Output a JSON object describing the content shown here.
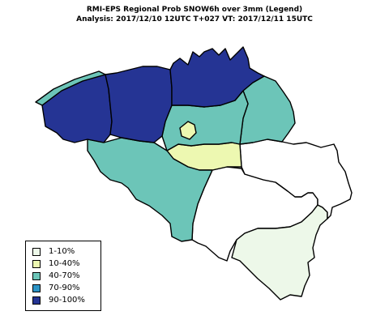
{
  "title": {
    "line1": "RMI-EPS Regional Prob SNOW6h over 3mm (Legend)",
    "line2": "Analysis:  2017/12/10 12UTC  T+027  VT:  2017/12/11  15UTC"
  },
  "legend": {
    "items": [
      {
        "label": "1-10%",
        "color": "#edf8e9"
      },
      {
        "label": "10-40%",
        "color": "#edf8b1"
      },
      {
        "label": "40-70%",
        "color": "#6cc5b8"
      },
      {
        "label": "70-90%",
        "color": "#2c94c6"
      },
      {
        "label": "90-100%",
        "color": "#253494"
      }
    ]
  },
  "regions": [
    {
      "name": "West Flanders",
      "category": "90-100%"
    },
    {
      "name": "East Flanders",
      "category": "90-100%"
    },
    {
      "name": "Antwerp",
      "category": "90-100%"
    },
    {
      "name": "Limburg",
      "category": "40-70%"
    },
    {
      "name": "Flemish Brabant",
      "category": "40-70%"
    },
    {
      "name": "Brussels",
      "category": "10-40%"
    },
    {
      "name": "Walloon Brabant",
      "category": "10-40%"
    },
    {
      "name": "Hainaut",
      "category": "40-70%"
    },
    {
      "name": "Namur",
      "category": "none"
    },
    {
      "name": "Liège",
      "category": "10-40%"
    },
    {
      "name": "Luxembourg",
      "category": "1-10%"
    },
    {
      "name": "Flemish coast strip",
      "category": "40-70%"
    }
  ]
}
